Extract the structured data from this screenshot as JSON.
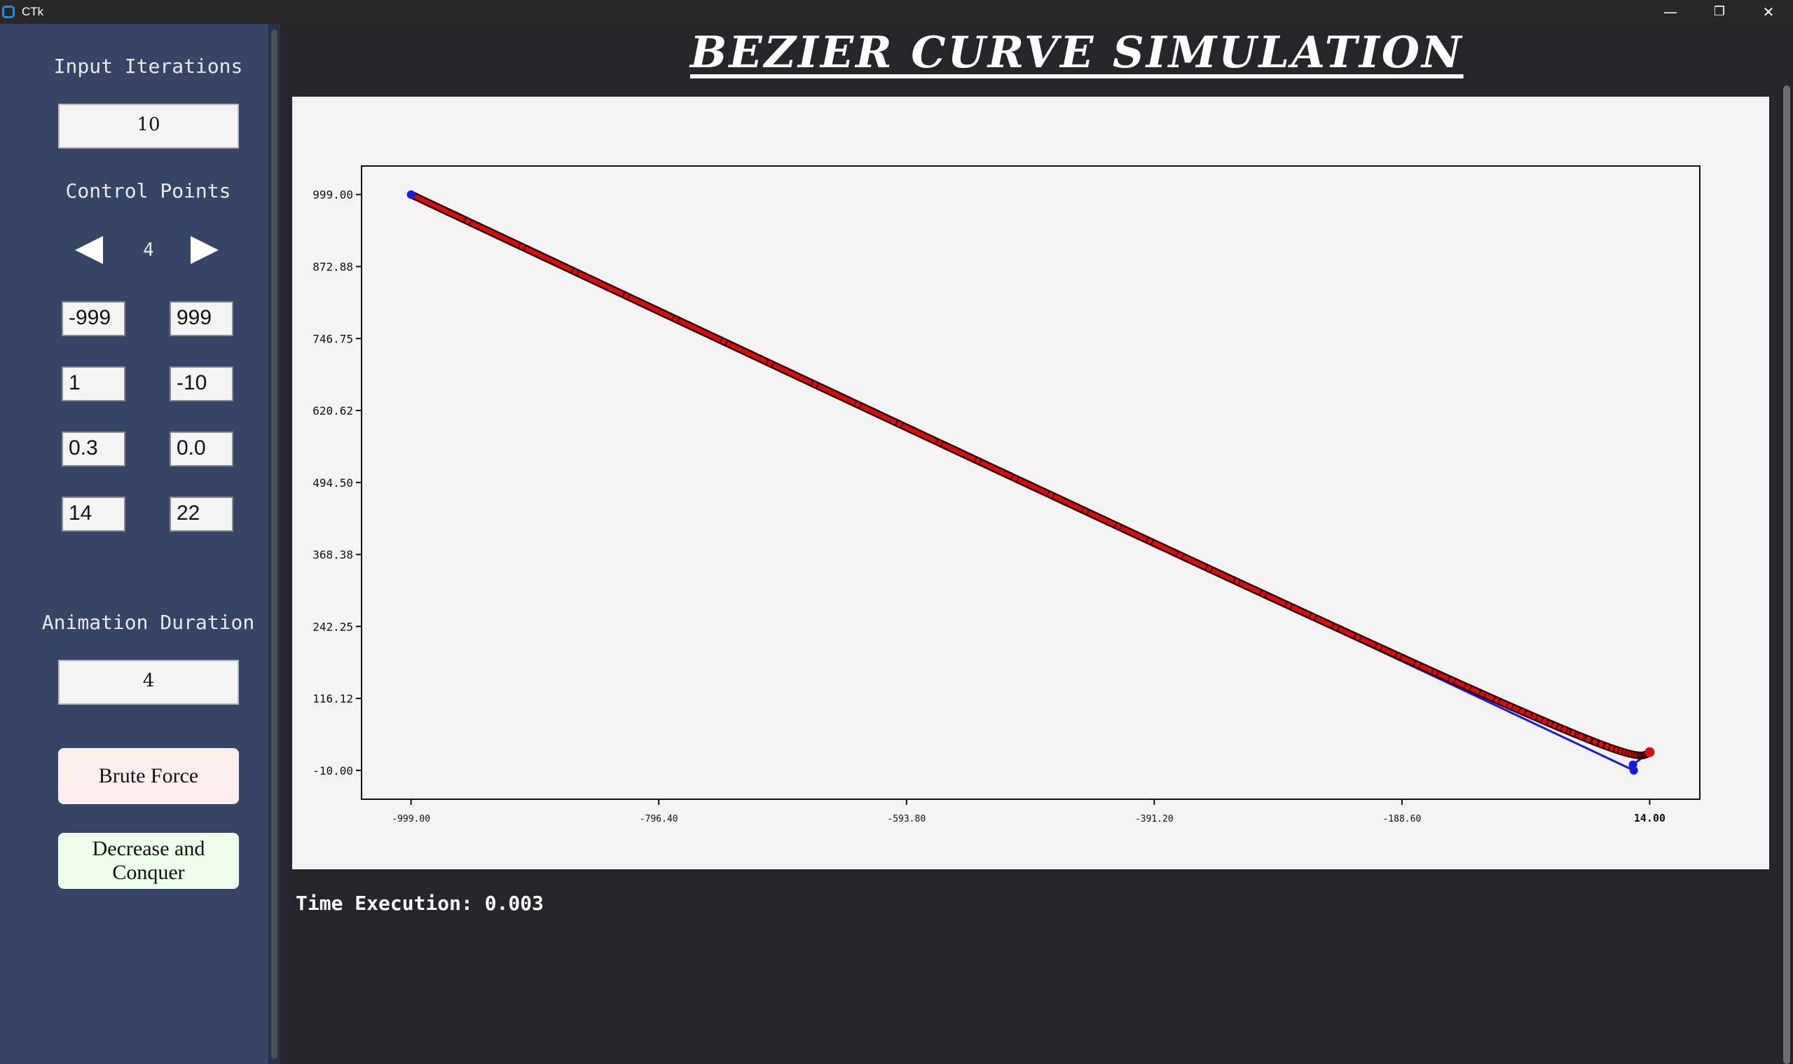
{
  "window": {
    "title": "CTk",
    "minimize_glyph": "—",
    "restore_glyph": "❐",
    "close_glyph": "✕"
  },
  "sidebar": {
    "iterations_label": "Input Iterations",
    "iterations_value": "10",
    "control_points_label": "Control Points",
    "control_points_count": "4",
    "points": [
      {
        "x": "-999",
        "y": "999"
      },
      {
        "x": "1",
        "y": "-10"
      },
      {
        "x": "0.3",
        "y": "0.0"
      },
      {
        "x": "14",
        "y": "22"
      }
    ],
    "duration_label": "Animation Duration",
    "duration_value": "4",
    "brute_force_label": "Brute Force",
    "decrease_conquer_label": "Decrease and Conquer"
  },
  "main": {
    "title": "BEZIER CURVE SIMULATION",
    "time_execution": "Time Execution: 0.003"
  },
  "colors": {
    "curve": "#d40f0f",
    "control_polygon": "#1a1adc",
    "brute_force_bg": "#fdeeee",
    "decrease_conquer_bg": "#eefdea"
  },
  "chart_data": {
    "type": "line",
    "xlim": [
      -1039.5,
      55.0
    ],
    "ylim": [
      -60.5,
      1049.0
    ],
    "xticks": [
      "-999.00",
      "-796.40",
      "-593.80",
      "-391.20",
      "-188.60",
      "14.00"
    ],
    "yticks": [
      "999.00",
      "872.88",
      "746.75",
      "620.62",
      "494.50",
      "368.38",
      "242.25",
      "116.12",
      "-10.00"
    ],
    "control_points": [
      [
        -999,
        999
      ],
      [
        1,
        -10
      ],
      [
        0.3,
        0.0
      ],
      [
        14,
        22
      ]
    ],
    "curve_samples": 1024,
    "grid": false
  }
}
